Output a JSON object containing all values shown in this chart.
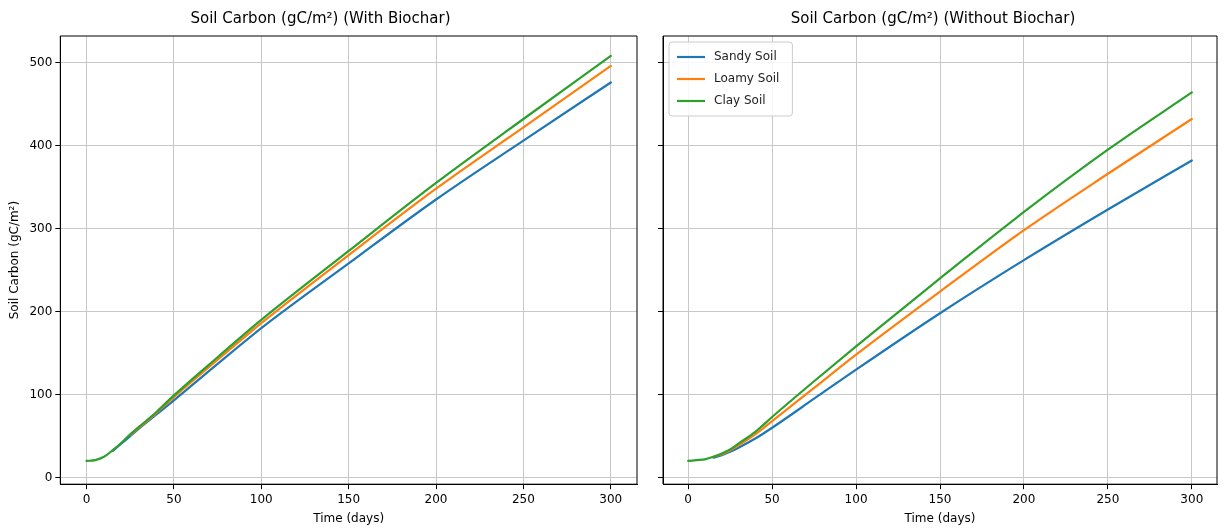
{
  "chart_data": [
    {
      "type": "line",
      "title": "Soil Carbon (gC/m²) (With Biochar)",
      "xlabel": "Time (days)",
      "ylabel": "Soil Carbon (gC/m²)",
      "x": [
        0,
        5,
        10,
        15,
        20,
        25,
        30,
        40,
        50,
        75,
        100,
        150,
        200,
        250,
        300
      ],
      "series": [
        {
          "color": "#1f77b4",
          "values": [
            null,
            null,
            null,
            32,
            41,
            50,
            59,
            76,
            93,
            137,
            180,
            258,
            335,
            406,
            476
          ]
        },
        {
          "color": "#ff7f0e",
          "values": [
            null,
            null,
            null,
            null,
            null,
            51,
            60,
            78,
            97,
            142,
            186,
            268,
            348,
            422,
            496
          ]
        },
        {
          "color": "#2ca02c",
          "values": [
            20,
            21,
            25,
            33,
            42,
            52,
            61,
            79,
            99,
            145,
            190,
            273,
            355,
            432,
            508
          ]
        }
      ],
      "xlim": [
        -15,
        315
      ],
      "ylim": [
        -8,
        532
      ],
      "xticks": [
        0,
        50,
        100,
        150,
        200,
        250,
        300
      ],
      "yticks": [
        0,
        100,
        200,
        300,
        400,
        500
      ],
      "grid": true,
      "legend": false,
      "marker": "none",
      "line_style": "solid"
    },
    {
      "type": "line",
      "title": "Soil Carbon (gC/m²) (Without Biochar)",
      "xlabel": "Time (days)",
      "x": [
        0,
        5,
        10,
        15,
        20,
        25,
        30,
        40,
        50,
        75,
        100,
        150,
        200,
        250,
        300
      ],
      "series": [
        {
          "name": "Sandy Soil",
          "color": "#1f77b4",
          "values": [
            null,
            null,
            null,
            24,
            27,
            31,
            36,
            47,
            60,
            95,
            130,
            198,
            262,
            323,
            382
          ]
        },
        {
          "name": "Loamy Soil",
          "color": "#ff7f0e",
          "values": [
            null,
            null,
            null,
            25,
            28,
            33,
            39,
            52,
            68,
            108,
            148,
            224,
            298,
            366,
            432
          ]
        },
        {
          "name": "Clay Soil",
          "color": "#2ca02c",
          "values": [
            20,
            21,
            22,
            25,
            29,
            34,
            41,
            55,
            73,
            116,
            158,
            240,
            320,
            395,
            464
          ]
        }
      ],
      "xlim": [
        -15,
        315
      ],
      "ylim": [
        -8,
        532
      ],
      "xticks": [
        0,
        50,
        100,
        150,
        200,
        250,
        300
      ],
      "yticks": [
        0,
        100,
        200,
        300,
        400,
        500
      ],
      "grid": true,
      "legend": "top left",
      "marker": "none",
      "line_style": "solid",
      "tick_labels": "x"
    }
  ]
}
